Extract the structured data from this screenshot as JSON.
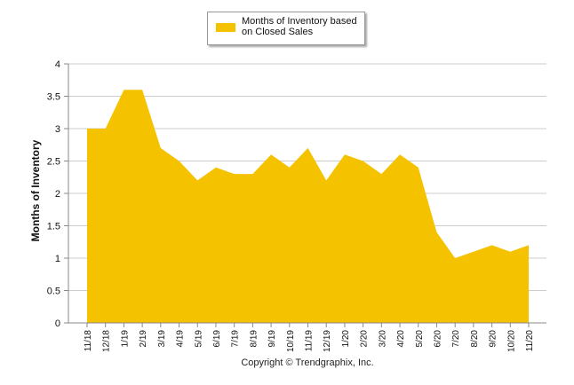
{
  "chart_data": {
    "type": "area",
    "title": "",
    "xlabel": "",
    "ylabel": "Months of Inventory",
    "ylim": [
      0,
      4
    ],
    "yticks": [
      "0",
      "0.5",
      "1",
      "1.5",
      "2",
      "2.5",
      "3",
      "3.5",
      "4"
    ],
    "ytick_values": [
      0,
      0.5,
      1,
      1.5,
      2,
      2.5,
      3,
      3.5,
      4
    ],
    "grid": true,
    "legend_position": "top-center",
    "categories": [
      "11/18",
      "12/18",
      "1/19",
      "2/19",
      "3/19",
      "4/19",
      "5/19",
      "6/19",
      "7/19",
      "8/19",
      "9/19",
      "10/19",
      "11/19",
      "12/19",
      "1/20",
      "2/20",
      "3/20",
      "4/20",
      "5/20",
      "6/20",
      "7/20",
      "8/20",
      "9/20",
      "10/20",
      "11/20"
    ],
    "series": [
      {
        "name": "Months of Inventory based\non Closed Sales",
        "color": "#f5c200",
        "values": [
          3.0,
          3.0,
          3.6,
          3.6,
          2.7,
          2.5,
          2.2,
          2.4,
          2.3,
          2.3,
          2.6,
          2.4,
          2.7,
          2.2,
          2.6,
          2.5,
          2.3,
          2.6,
          2.4,
          1.4,
          1.0,
          1.1,
          1.2,
          1.1,
          1.2
        ]
      }
    ]
  },
  "footer": {
    "copyright": "Copyright © Trendgraphix, Inc."
  },
  "colors": {
    "grid": "#cccccc",
    "axis": "#888888",
    "fill": "#f5c200"
  }
}
